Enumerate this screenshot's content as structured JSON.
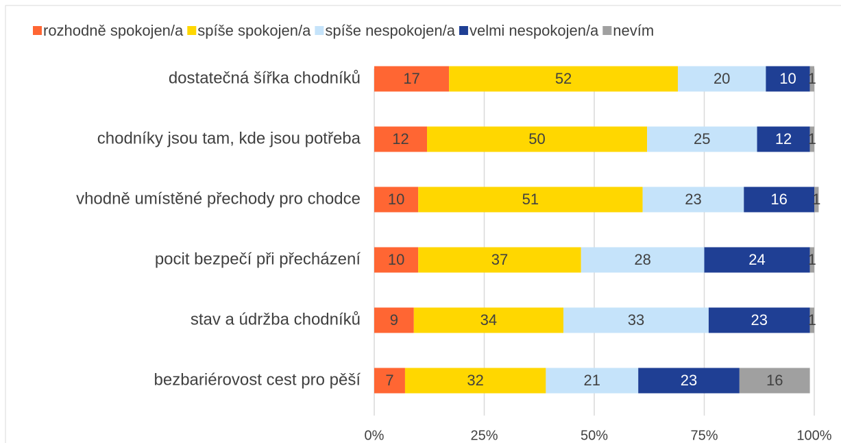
{
  "chart_data": {
    "type": "stacked_barh",
    "categories": [
      "dostatečná šířka chodníků",
      "chodníky jsou tam, kde jsou potřeba",
      "vhodně umístěné přechody pro chodce",
      "pocit bezpečí při přecházení",
      "stav a údržba chodníků",
      "bezbariérovost cest pro pěší"
    ],
    "series": [
      {
        "name": "rozhodně spokojen/a",
        "color": "#ff6633",
        "values": [
          17,
          12,
          10,
          10,
          9,
          7
        ]
      },
      {
        "name": "spíše spokojen/a",
        "color": "#ffd700",
        "values": [
          52,
          50,
          51,
          37,
          34,
          32
        ]
      },
      {
        "name": "spíše nespokojen/a",
        "color": "#c5e3fa",
        "values": [
          20,
          25,
          23,
          28,
          33,
          21
        ]
      },
      {
        "name": "velmi nespokojen/a",
        "color": "#1f3f94",
        "values": [
          10,
          12,
          16,
          24,
          23,
          23
        ]
      },
      {
        "name": "nevím",
        "color": "#a0a0a0",
        "values": [
          1,
          1,
          1,
          1,
          1,
          16
        ]
      }
    ],
    "xlim": [
      0,
      100
    ],
    "xticks": [
      {
        "value": 0,
        "label": "0%"
      },
      {
        "value": 25,
        "label": "25%"
      },
      {
        "value": 50,
        "label": "50%"
      },
      {
        "value": 75,
        "label": "75%"
      },
      {
        "value": 100,
        "label": "100%"
      }
    ],
    "grid": true,
    "legend": "top"
  }
}
